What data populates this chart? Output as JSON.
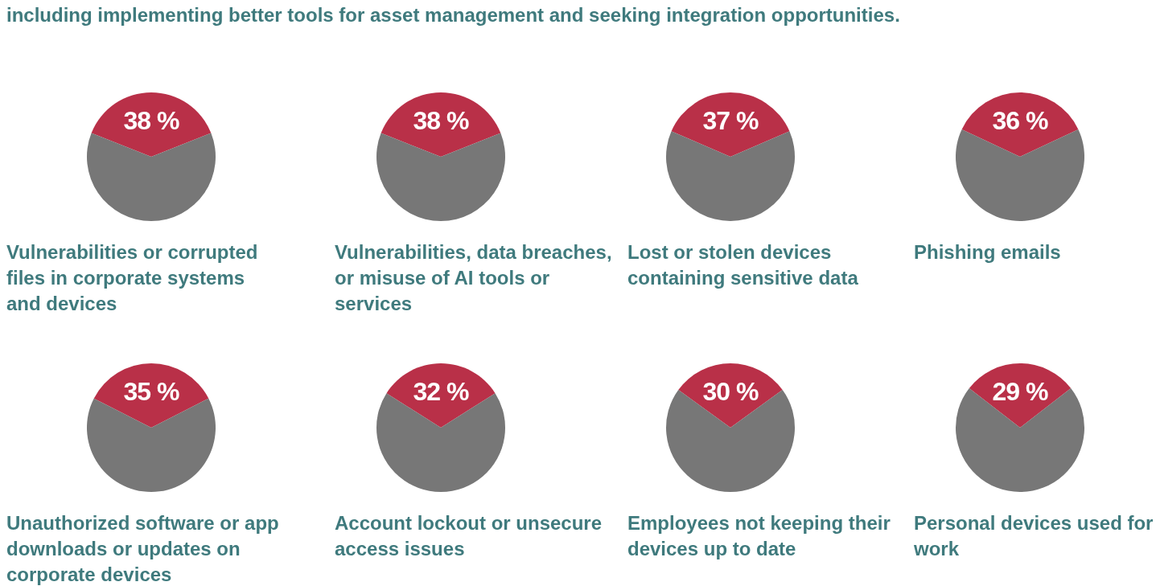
{
  "chart_data": [
    {
      "type": "pie",
      "title": "Vulnerabilities or corrupted files in corporate systems and devices",
      "categories": [
        null,
        null
      ],
      "values": [
        38,
        62
      ],
      "colors": [
        "#b93048",
        "#777777"
      ],
      "value_labels": [
        "38 %",
        null
      ],
      "annotations": [
        "including implementing better tools for asset management and seeking integration opportunities."
      ]
    },
    {
      "type": "pie",
      "title": "Vulnerabilities, data breaches, or misuse of AI tools or services",
      "categories": [
        null,
        null
      ],
      "values": [
        38,
        62
      ],
      "colors": [
        "#b93048",
        "#777777"
      ],
      "value_labels": [
        "38 %",
        null
      ]
    },
    {
      "type": "pie",
      "title": "Lost or stolen devices containing sensitive data",
      "categories": [
        null,
        null
      ],
      "values": [
        37,
        63
      ],
      "colors": [
        "#b93048",
        "#777777"
      ],
      "value_labels": [
        "37 %",
        null
      ]
    },
    {
      "type": "pie",
      "title": "Phishing emails",
      "categories": [
        null,
        null
      ],
      "values": [
        36,
        64
      ],
      "colors": [
        "#b93048",
        "#777777"
      ],
      "value_labels": [
        "36 %",
        null
      ]
    },
    {
      "type": "pie",
      "title": "Unauthorized software or app downloads or updates on corporate devices",
      "categories": [
        null,
        null
      ],
      "values": [
        35,
        65
      ],
      "colors": [
        "#b93048",
        "#777777"
      ],
      "value_labels": [
        "35 %",
        null
      ]
    },
    {
      "type": "pie",
      "title": "Account lockout or unsecure access issues",
      "categories": [
        null,
        null
      ],
      "values": [
        32,
        68
      ],
      "colors": [
        "#b93048",
        "#777777"
      ],
      "value_labels": [
        "32 %",
        null
      ]
    },
    {
      "type": "pie",
      "title": "Employees not keeping their devices up to date",
      "categories": [
        null,
        null
      ],
      "values": [
        30,
        70
      ],
      "colors": [
        "#b93048",
        "#777777"
      ],
      "value_labels": [
        "30 %",
        null
      ]
    },
    {
      "type": "pie",
      "title": "Personal devices used for work",
      "categories": [
        null,
        null
      ],
      "values": [
        29,
        71
      ],
      "colors": [
        "#b93048",
        "#777777"
      ],
      "value_labels": [
        "29 %",
        null
      ]
    }
  ]
}
